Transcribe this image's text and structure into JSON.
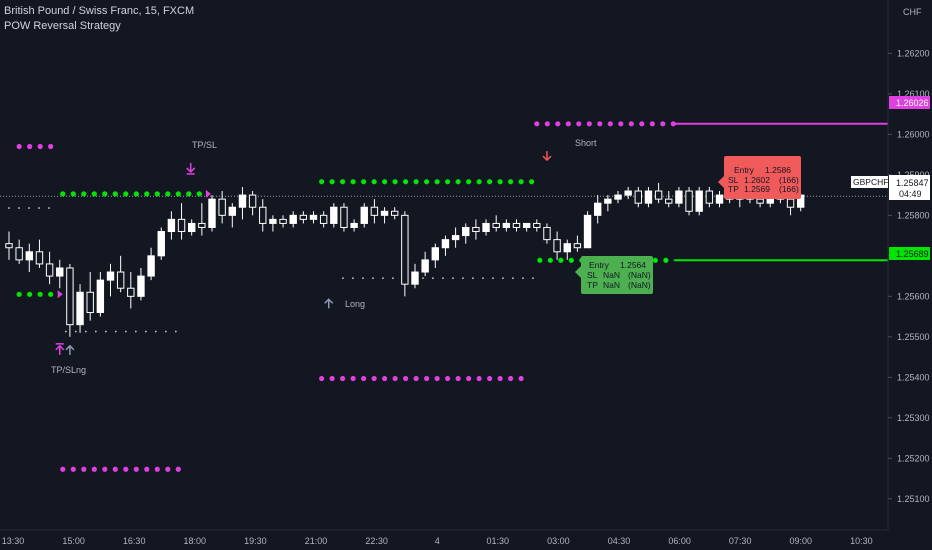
{
  "header": {
    "symbol_line": "British Pound / Swiss Franc, 15, FXCM",
    "strategy_name": "POW Reversal Strategy"
  },
  "price_axis": {
    "currency": "CHF",
    "tick_labels": [
      "1.26200",
      "1.26100",
      "1.26000",
      "1.25900",
      "1.25800",
      "1.25700",
      "1.25600",
      "1.25500",
      "1.25400",
      "1.25300",
      "1.25200",
      "1.25100"
    ],
    "short_level": "1.26026",
    "long_level": "1.25689",
    "symbol_tag": "GBPCHF",
    "current_price": "1.25847",
    "countdown": "04:49"
  },
  "time_axis": {
    "labels": [
      "13:30",
      "15:00",
      "16:30",
      "18:00",
      "19:30",
      "21:00",
      "22:30",
      "4",
      "01:30",
      "03:00",
      "04:30",
      "06:00",
      "07:30",
      "09:00",
      "10:30"
    ]
  },
  "colors": {
    "background": "#131722",
    "candle": "#ffffff",
    "green_dots": "#00e600",
    "magenta_dots": "#e040e0",
    "short_box": "#f05a5a",
    "long_box": "#4caf50",
    "long_level_line": "#00e600",
    "short_level_line": "#e040e0",
    "axis_text": "#b2b5be",
    "grey_arrow": "#8f9bb3",
    "short_arrow": "#ff5252"
  },
  "annotations": {
    "tp_sl_top": "TP/SL",
    "tp_sl_long_bottom": "TP/SLng",
    "long_label": "Long",
    "short_label": "Short"
  },
  "short_box": {
    "entry_label": "Entry",
    "entry_value": "1.2586",
    "sl_label": "SL",
    "sl_value": "1.2602",
    "sl_pips": "(166)",
    "tp_label": "TP",
    "tp_value": "1.2569",
    "tp_pips": "(166)"
  },
  "long_box": {
    "entry_label": "Entry",
    "entry_value": "1.2564",
    "sl_label": "SL",
    "sl_value": "NaN",
    "sl_pips": "(NaN)",
    "tp_label": "TP",
    "tp_value": "NaN",
    "tp_pips": "(NaN)"
  },
  "chart_data": {
    "type": "candlestick",
    "instrument": "GBPCHF",
    "timeframe": "15",
    "ylim": [
      1.2506,
      1.2627
    ],
    "price_line": 1.25847,
    "ohlc": [
      [
        1.2573,
        1.2576,
        1.2569,
        1.2572
      ],
      [
        1.2572,
        1.2574,
        1.2568,
        1.2569
      ],
      [
        1.2569,
        1.2573,
        1.2566,
        1.2571
      ],
      [
        1.2571,
        1.2574,
        1.2567,
        1.2568
      ],
      [
        1.2568,
        1.2571,
        1.2563,
        1.2565
      ],
      [
        1.2565,
        1.2569,
        1.2562,
        1.2567
      ],
      [
        1.2567,
        1.2568,
        1.255,
        1.2553
      ],
      [
        1.2553,
        1.2563,
        1.2551,
        1.2561
      ],
      [
        1.2561,
        1.2566,
        1.2554,
        1.2556
      ],
      [
        1.2556,
        1.2566,
        1.2555,
        1.2564
      ],
      [
        1.2564,
        1.2568,
        1.256,
        1.2566
      ],
      [
        1.2566,
        1.257,
        1.2561,
        1.2562
      ],
      [
        1.2562,
        1.2566,
        1.2557,
        1.256
      ],
      [
        1.256,
        1.2567,
        1.2559,
        1.2565
      ],
      [
        1.2565,
        1.2572,
        1.2564,
        1.257
      ],
      [
        1.257,
        1.2577,
        1.2569,
        1.2576
      ],
      [
        1.2576,
        1.2581,
        1.2574,
        1.2579
      ],
      [
        1.2579,
        1.2583,
        1.2574,
        1.2576
      ],
      [
        1.2576,
        1.2579,
        1.2575,
        1.2578
      ],
      [
        1.2578,
        1.2583,
        1.2575,
        1.2577
      ],
      [
        1.2577,
        1.2585,
        1.2576,
        1.2584
      ],
      [
        1.2584,
        1.2586,
        1.2578,
        1.258
      ],
      [
        1.258,
        1.2583,
        1.2577,
        1.2582
      ],
      [
        1.2582,
        1.2587,
        1.2579,
        1.2585
      ],
      [
        1.2585,
        1.2586,
        1.258,
        1.2582
      ],
      [
        1.2582,
        1.2584,
        1.2576,
        1.2578
      ],
      [
        1.2578,
        1.258,
        1.2576,
        1.2579
      ],
      [
        1.2579,
        1.258,
        1.2577,
        1.2578
      ],
      [
        1.2578,
        1.2581,
        1.2577,
        1.258
      ],
      [
        1.258,
        1.2581,
        1.2578,
        1.2579
      ],
      [
        1.2579,
        1.2581,
        1.2578,
        1.258
      ],
      [
        1.258,
        1.2581,
        1.2577,
        1.2578
      ],
      [
        1.2578,
        1.2583,
        1.2577,
        1.2582
      ],
      [
        1.2582,
        1.2583,
        1.2576,
        1.2577
      ],
      [
        1.2577,
        1.2579,
        1.2576,
        1.2578
      ],
      [
        1.2578,
        1.2583,
        1.2577,
        1.2582
      ],
      [
        1.2582,
        1.2584,
        1.2578,
        1.258
      ],
      [
        1.258,
        1.2582,
        1.2578,
        1.2581
      ],
      [
        1.2581,
        1.2582,
        1.2579,
        1.258
      ],
      [
        1.258,
        1.2581,
        1.256,
        1.2563
      ],
      [
        1.2563,
        1.2568,
        1.2562,
        1.2566
      ],
      [
        1.2566,
        1.2571,
        1.2565,
        1.2569
      ],
      [
        1.2569,
        1.2573,
        1.2567,
        1.2572
      ],
      [
        1.2572,
        1.2575,
        1.257,
        1.2574
      ],
      [
        1.2574,
        1.2577,
        1.2572,
        1.2575
      ],
      [
        1.2575,
        1.2578,
        1.2573,
        1.2577
      ],
      [
        1.2577,
        1.2579,
        1.2574,
        1.2576
      ],
      [
        1.2576,
        1.2579,
        1.2575,
        1.2578
      ],
      [
        1.2578,
        1.258,
        1.2576,
        1.2577
      ],
      [
        1.2577,
        1.2579,
        1.2576,
        1.2578
      ],
      [
        1.2578,
        1.2579,
        1.2576,
        1.2577
      ],
      [
        1.2577,
        1.2578,
        1.2576,
        1.2578
      ],
      [
        1.2578,
        1.2579,
        1.2576,
        1.2577
      ],
      [
        1.2577,
        1.2578,
        1.2573,
        1.2574
      ],
      [
        1.2574,
        1.2576,
        1.2569,
        1.2571
      ],
      [
        1.2571,
        1.2574,
        1.2569,
        1.2573
      ],
      [
        1.2573,
        1.2575,
        1.2571,
        1.2572
      ],
      [
        1.2572,
        1.2581,
        1.2572,
        1.258
      ],
      [
        1.258,
        1.2585,
        1.2578,
        1.2583
      ],
      [
        1.2583,
        1.2585,
        1.2581,
        1.2584
      ],
      [
        1.2584,
        1.2586,
        1.2583,
        1.2585
      ],
      [
        1.2585,
        1.2587,
        1.2584,
        1.2586
      ],
      [
        1.2586,
        1.2587,
        1.2582,
        1.2583
      ],
      [
        1.2583,
        1.2587,
        1.2582,
        1.2586
      ],
      [
        1.2586,
        1.2588,
        1.2583,
        1.2584
      ],
      [
        1.2584,
        1.2586,
        1.2582,
        1.2583
      ],
      [
        1.2583,
        1.2587,
        1.2582,
        1.2586
      ],
      [
        1.2586,
        1.2587,
        1.258,
        1.2581
      ],
      [
        1.2581,
        1.2587,
        1.258,
        1.2586
      ],
      [
        1.2586,
        1.2587,
        1.2582,
        1.2583
      ],
      [
        1.2583,
        1.2586,
        1.2582,
        1.2585
      ],
      [
        1.2585,
        1.2586,
        1.2583,
        1.2584
      ],
      [
        1.2584,
        1.2586,
        1.2582,
        1.2585
      ],
      [
        1.2585,
        1.2586,
        1.2583,
        1.2584
      ],
      [
        1.2584,
        1.2586,
        1.2582,
        1.2583
      ],
      [
        1.2583,
        1.2586,
        1.2582,
        1.2585
      ],
      [
        1.2585,
        1.2586,
        1.2583,
        1.2584
      ],
      [
        1.2584,
        1.2586,
        1.258,
        1.2582
      ],
      [
        1.2582,
        1.2585,
        1.2581,
        1.2585
      ]
    ],
    "segments": [
      {
        "name": "green-dots-1",
        "color": "green",
        "price": 1.25605,
        "x": [
          1.0,
          4.5
        ]
      },
      {
        "name": "green-dots-2",
        "color": "green",
        "price": 1.25853,
        "x": [
          5.3,
          19.4
        ]
      },
      {
        "name": "green-dots-3",
        "color": "green",
        "price": 1.25883,
        "x": [
          30.8,
          51.9
        ]
      },
      {
        "name": "green-dots-4",
        "color": "green",
        "price": 1.25689,
        "x": [
          52.3,
          65.5
        ]
      },
      {
        "name": "magenta-dots-1",
        "color": "magenta",
        "price": 1.2597,
        "x": [
          1.0,
          4.5
        ]
      },
      {
        "name": "magenta-dots-2",
        "color": "magenta",
        "price": 1.25173,
        "x": [
          5.3,
          17.4
        ]
      },
      {
        "name": "magenta-dots-3",
        "color": "magenta",
        "price": 1.25397,
        "x": [
          30.8,
          51.2
        ]
      },
      {
        "name": "magenta-dots-4",
        "color": "magenta",
        "price": 1.26026,
        "x": [
          52.0,
          65.5
        ]
      }
    ],
    "small_dot_lines": [
      {
        "price": 1.25818,
        "x": [
          0.0,
          4.5
        ]
      },
      {
        "price": 1.25513,
        "x": [
          5.6,
          17.4
        ]
      },
      {
        "price": 1.25645,
        "x": [
          32.9,
          51.9
        ]
      }
    ],
    "markers": [
      {
        "type": "tp-sl-down",
        "index": 18,
        "price": 1.25875
      },
      {
        "type": "tp-sl-up",
        "index": 5,
        "price": 1.25495
      },
      {
        "type": "long-up",
        "index": 6,
        "price": 1.25495
      },
      {
        "type": "long-up",
        "index": 31.5,
        "price": 1.2561
      },
      {
        "type": "short-down",
        "index": 53,
        "price": 1.25882
      },
      {
        "type": "entry-short",
        "index": 65.5,
        "price": 1.2586
      },
      {
        "type": "entry-long",
        "index": 52.3,
        "price": 1.2569
      }
    ]
  }
}
